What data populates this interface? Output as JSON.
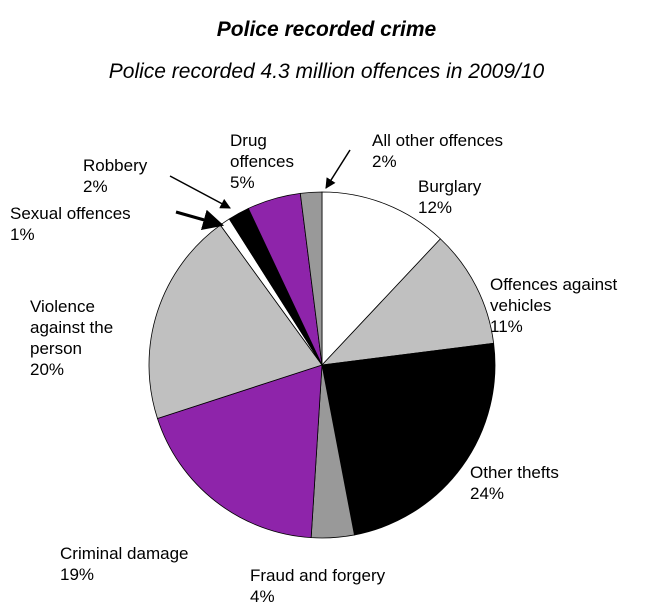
{
  "chart_data": {
    "type": "pie",
    "title": "Police recorded crime",
    "subtitle": "Police recorded 4.3 million offences in 2009/10",
    "categories": [
      "Burglary",
      "Offences against vehicles",
      "Other thefts",
      "Fraud and forgery",
      "Criminal damage",
      "Violence against the person",
      "Sexual offences",
      "Robbery",
      "Drug offences",
      "All other offences"
    ],
    "values": [
      12,
      11,
      24,
      4,
      19,
      20,
      1,
      2,
      5,
      2
    ],
    "value_labels": [
      "12%",
      "11%",
      "24%",
      "4%",
      "19%",
      "20%",
      "1%",
      "2%",
      "5%",
      "2%"
    ],
    "colors": [
      "#ffffff",
      "#c0c0c0",
      "#000000",
      "#999999",
      "#8e24aa",
      "#c0c0c0",
      "#ffffff",
      "#000000",
      "#8e24aa",
      "#999999"
    ]
  }
}
